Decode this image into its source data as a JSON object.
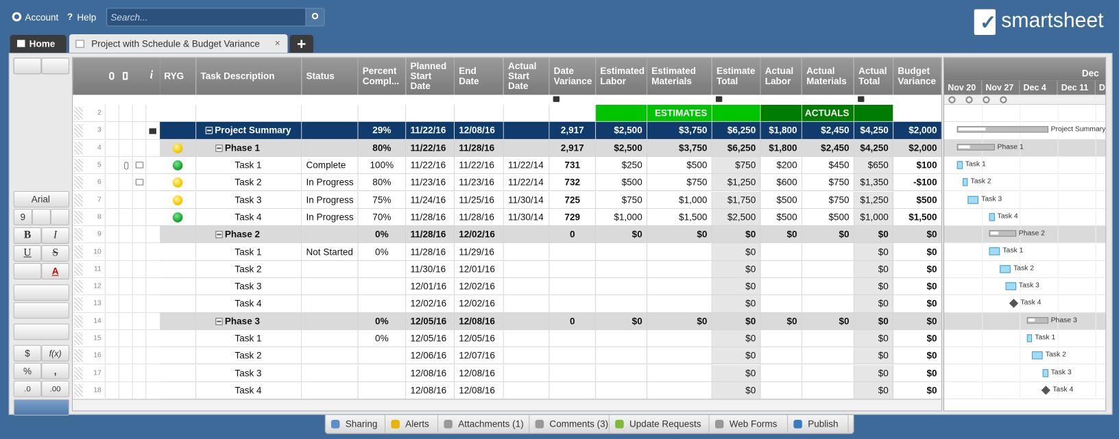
{
  "header": {
    "account": "Account",
    "help": "Help",
    "search_placeholder": "Search...",
    "logo": "smartsheet"
  },
  "tabs": {
    "home": "Home",
    "sheet": "Project with Schedule & Budget Variance"
  },
  "toolbar": {
    "font": "Arial",
    "font_size": "9",
    "bold": "B",
    "italic": "I",
    "underline": "U",
    "strike": "S",
    "text_color": "A",
    "currency": "$",
    "formula": "f(x)",
    "percent": "%",
    "comma": ",",
    "dec_less": ".0",
    "dec_more": ".00"
  },
  "grid": {
    "info_header": "i",
    "ryg_header": "RYG",
    "columns": [
      {
        "label": "Task Description",
        "locked": false
      },
      {
        "label": "Status",
        "locked": false
      },
      {
        "label": "Percent Compl...",
        "locked": false
      },
      {
        "label": "Planned Start Date",
        "locked": false
      },
      {
        "label": "End Date",
        "locked": false
      },
      {
        "label": "Actual Start Date",
        "locked": false
      },
      {
        "label": "Date Variance",
        "locked": true
      },
      {
        "label": "Estimated Labor",
        "locked": false
      },
      {
        "label": "Estimated Materials",
        "locked": false
      },
      {
        "label": "Estimate Total",
        "locked": true
      },
      {
        "label": "Actual Labor",
        "locked": false
      },
      {
        "label": "Actual Materials",
        "locked": false
      },
      {
        "label": "Actual Total",
        "locked": true
      },
      {
        "label": "Budget Variance",
        "locked": false
      }
    ],
    "rows": [
      {
        "num": "2",
        "kind": "banner",
        "ryg": null,
        "cells": [
          null,
          null,
          null,
          null,
          null,
          null,
          null,
          null,
          "ESTIMATES",
          null,
          null,
          "ACTUALS",
          null,
          null
        ],
        "fills": [
          null,
          null,
          null,
          null,
          null,
          null,
          null,
          "#00c400",
          "#00c400",
          "#00c400",
          "#007d00",
          "#007d00",
          "#007d00",
          null
        ]
      },
      {
        "num": "3",
        "kind": "summary",
        "ryg": null,
        "locked": true,
        "cells": [
          "Project Summary",
          null,
          "29%",
          "11/22/16",
          "12/08/16",
          null,
          "2,917",
          "$2,500",
          "$3,750",
          "$6,250",
          "$1,800",
          "$2,450",
          "$4,250",
          "$2,000"
        ]
      },
      {
        "num": "4",
        "kind": "phase",
        "ryg": "yellow",
        "cells": [
          "Phase 1",
          null,
          "80%",
          "11/22/16",
          "11/28/16",
          null,
          "2,917",
          "$2,500",
          "$3,750",
          "$6,250",
          "$1,800",
          "$2,450",
          "$4,250",
          "$2,000"
        ]
      },
      {
        "num": "5",
        "kind": "task",
        "ryg": "green",
        "attachment": true,
        "comment": true,
        "cells": [
          "Task 1",
          "Complete",
          "100%",
          "11/22/16",
          "11/22/16",
          "11/22/14",
          "731",
          "$250",
          "$500",
          "$750",
          "$200",
          "$450",
          "$650",
          "$100"
        ]
      },
      {
        "num": "6",
        "kind": "task",
        "ryg": "yellow",
        "comment": true,
        "cells": [
          "Task 2",
          "In Progress",
          "80%",
          "11/23/16",
          "11/23/16",
          "11/22/14",
          "732",
          "$500",
          "$750",
          "$1,250",
          "$600",
          "$750",
          "$1,350",
          "-$100"
        ]
      },
      {
        "num": "7",
        "kind": "task",
        "ryg": "yellow",
        "cells": [
          "Task 3",
          "In Progress",
          "75%",
          "11/24/16",
          "11/25/16",
          "11/30/14",
          "725",
          "$750",
          "$1,000",
          "$1,750",
          "$500",
          "$750",
          "$1,250",
          "$500"
        ]
      },
      {
        "num": "8",
        "kind": "task",
        "ryg": "green",
        "cells": [
          "Task 4",
          "In Progress",
          "70%",
          "11/28/16",
          "11/28/16",
          "11/30/14",
          "729",
          "$1,000",
          "$1,500",
          "$2,500",
          "$500",
          "$500",
          "$1,000",
          "$1,500"
        ]
      },
      {
        "num": "9",
        "kind": "phase",
        "ryg": null,
        "cells": [
          "Phase 2",
          null,
          "0%",
          "11/28/16",
          "12/02/16",
          null,
          "0",
          "$0",
          "$0",
          "$0",
          "$0",
          "$0",
          "$0",
          "$0"
        ]
      },
      {
        "num": "10",
        "kind": "task",
        "ryg": null,
        "cells": [
          "Task 1",
          "Not Started",
          "0%",
          "11/28/16",
          "11/29/16",
          null,
          null,
          null,
          null,
          "$0",
          null,
          null,
          "$0",
          "$0"
        ]
      },
      {
        "num": "11",
        "kind": "task",
        "ryg": null,
        "cells": [
          "Task 2",
          null,
          null,
          "11/30/16",
          "12/01/16",
          null,
          null,
          null,
          null,
          "$0",
          null,
          null,
          "$0",
          "$0"
        ]
      },
      {
        "num": "12",
        "kind": "task",
        "ryg": null,
        "cells": [
          "Task 3",
          null,
          null,
          "12/01/16",
          "12/02/16",
          null,
          null,
          null,
          null,
          "$0",
          null,
          null,
          "$0",
          "$0"
        ]
      },
      {
        "num": "13",
        "kind": "task",
        "ryg": null,
        "cells": [
          "Task 4",
          null,
          null,
          "12/02/16",
          "12/02/16",
          null,
          null,
          null,
          null,
          "$0",
          null,
          null,
          "$0",
          "$0"
        ]
      },
      {
        "num": "14",
        "kind": "phase",
        "ryg": null,
        "cells": [
          "Phase 3",
          null,
          "0%",
          "12/05/16",
          "12/08/16",
          null,
          "0",
          "$0",
          "$0",
          "$0",
          "$0",
          "$0",
          "$0",
          "$0"
        ]
      },
      {
        "num": "15",
        "kind": "task",
        "ryg": null,
        "cells": [
          "Task 1",
          null,
          "0%",
          "12/05/16",
          "12/05/16",
          null,
          null,
          null,
          null,
          "$0",
          null,
          null,
          "$0",
          "$0"
        ]
      },
      {
        "num": "16",
        "kind": "task",
        "ryg": null,
        "cells": [
          "Task 2",
          null,
          null,
          "12/06/16",
          "12/07/16",
          null,
          null,
          null,
          null,
          "$0",
          null,
          null,
          "$0",
          "$0"
        ]
      },
      {
        "num": "17",
        "kind": "task",
        "ryg": null,
        "cells": [
          "Task 3",
          null,
          null,
          "12/08/16",
          "12/08/16",
          null,
          null,
          null,
          null,
          "$0",
          null,
          null,
          "$0",
          "$0"
        ]
      },
      {
        "num": "18",
        "kind": "task",
        "ryg": null,
        "cells": [
          "Task 4",
          null,
          null,
          "12/08/16",
          "12/08/16",
          null,
          null,
          null,
          null,
          "$0",
          null,
          null,
          "$0",
          "$0"
        ]
      }
    ]
  },
  "gantt": {
    "month": "Dec",
    "weeks": [
      "Nov 20",
      "Nov 27",
      "Dec 4",
      "Dec 11",
      "D"
    ]
  },
  "footer": [
    "Sharing",
    "Alerts",
    "Attachments (1)",
    "Comments (3)",
    "Update Requests",
    "Web Forms",
    "Publish"
  ]
}
